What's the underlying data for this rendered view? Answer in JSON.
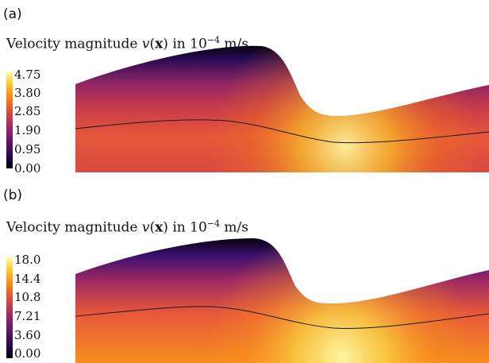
{
  "panels": [
    {
      "label": "(a)",
      "title": {
        "prefix": "Velocity magnitude ",
        "v": "v",
        "open": "(",
        "x": "x",
        "close": ")",
        "mid": " in 10",
        "exp": "−4",
        "unit": " m/s"
      },
      "colorbar_ticks": [
        "4.75",
        "3.80",
        "2.85",
        "1.90",
        "0.95",
        "0.00"
      ],
      "range": [
        0.0,
        4.75
      ]
    },
    {
      "label": "(b)",
      "title": {
        "prefix": "Velocity magnitude ",
        "v": "v",
        "open": "(",
        "x": "x",
        "close": ")",
        "mid": " in 10",
        "exp": "−4",
        "unit": " m/s"
      },
      "colorbar_ticks": [
        "18.0",
        "14.4",
        "10.8",
        "7.21",
        "3.60",
        "0.00"
      ],
      "range": [
        0.0,
        18.0
      ]
    }
  ],
  "colormap": [
    "#000004",
    "#280b54",
    "#65156e",
    "#9f2a63",
    "#d44842",
    "#f57d15",
    "#fac228",
    "#fcffa4"
  ]
}
